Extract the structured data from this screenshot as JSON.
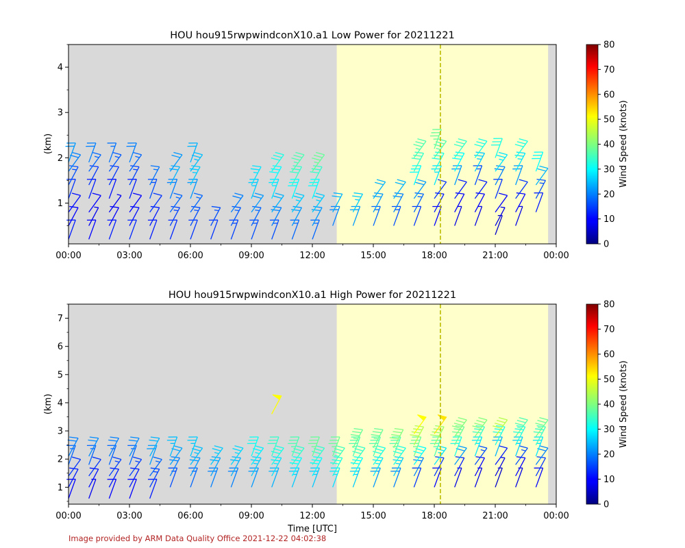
{
  "credit": "Image provided by ARM Data Quality Office 2021-12-22 04:02:38",
  "colors": {
    "night_shading": "#d9d9d9",
    "day_shading": "#ffffcc",
    "marker_line": "#bbbb00",
    "credit_text": "#b22222"
  },
  "chart_data": [
    {
      "type": "scatter",
      "marker": "wind-barb",
      "title": "HOU hou915rwpwindconX10.a1 Low Power for 20211221",
      "ylabel": "(km)",
      "xlabel": "",
      "x_ticks": [
        "00:00",
        "03:00",
        "06:00",
        "09:00",
        "12:00",
        "15:00",
        "18:00",
        "21:00",
        "00:00"
      ],
      "xlim_hours": [
        0,
        24
      ],
      "ylim": [
        0.1,
        4.5
      ],
      "y_ticks": [
        1,
        2,
        3,
        4
      ],
      "daylight_hours": [
        13.2,
        23.6
      ],
      "marker_line_hour": 18.3,
      "colorbar": {
        "label": "Wind Speed (knots)",
        "range": [
          0,
          80
        ],
        "ticks": [
          0,
          10,
          20,
          30,
          40,
          50,
          60,
          70,
          80
        ],
        "colormap": "jet"
      },
      "profiles": [
        {
          "time_h": 0.0,
          "heights_km": [
            0.2,
            0.5,
            0.8,
            1.1,
            1.4,
            1.7,
            1.9
          ],
          "speed_kt": [
            12,
            10,
            11,
            14,
            16,
            20,
            22
          ]
        },
        {
          "time_h": 1.0,
          "heights_km": [
            0.2,
            0.5,
            0.8,
            1.1,
            1.4,
            1.7,
            1.9
          ],
          "speed_kt": [
            10,
            9,
            10,
            12,
            14,
            18,
            20
          ]
        },
        {
          "time_h": 2.0,
          "heights_km": [
            0.2,
            0.5,
            0.8,
            1.1,
            1.4,
            1.7,
            1.9
          ],
          "speed_kt": [
            12,
            10,
            9,
            11,
            14,
            17,
            19
          ]
        },
        {
          "time_h": 3.0,
          "heights_km": [
            0.2,
            0.5,
            0.8,
            1.1,
            1.4,
            1.7,
            1.9
          ],
          "speed_kt": [
            13,
            11,
            10,
            12,
            15,
            18,
            20
          ]
        },
        {
          "time_h": 4.0,
          "heights_km": [
            0.2,
            0.5,
            0.8,
            1.1,
            1.4
          ],
          "speed_kt": [
            12,
            12,
            14,
            16,
            19
          ]
        },
        {
          "time_h": 5.0,
          "heights_km": [
            0.2,
            0.5,
            0.8,
            1.1,
            1.4,
            1.7
          ],
          "speed_kt": [
            13,
            15,
            18,
            20,
            24,
            22
          ]
        },
        {
          "time_h": 6.0,
          "heights_km": [
            0.2,
            0.5,
            0.8,
            1.1,
            1.4,
            1.7,
            1.9
          ],
          "speed_kt": [
            14,
            16,
            18,
            22,
            26,
            25,
            24
          ]
        },
        {
          "time_h": 7.0,
          "heights_km": [
            0.2,
            0.5
          ],
          "speed_kt": [
            14,
            16
          ]
        },
        {
          "time_h": 8.0,
          "heights_km": [
            0.2,
            0.5,
            0.8
          ],
          "speed_kt": [
            15,
            17,
            20
          ]
        },
        {
          "time_h": 9.0,
          "heights_km": [
            0.2,
            0.5,
            0.8,
            1.1,
            1.4
          ],
          "speed_kt": [
            16,
            18,
            22,
            26,
            28
          ]
        },
        {
          "time_h": 10.0,
          "heights_km": [
            0.2,
            0.5,
            0.8,
            1.1,
            1.4,
            1.7
          ],
          "speed_kt": [
            16,
            20,
            24,
            28,
            30,
            32
          ]
        },
        {
          "time_h": 11.0,
          "heights_km": [
            0.2,
            0.5,
            0.8,
            1.1,
            1.4,
            1.7
          ],
          "speed_kt": [
            18,
            22,
            26,
            30,
            34,
            36
          ]
        },
        {
          "time_h": 12.0,
          "heights_km": [
            0.2,
            0.5,
            0.8,
            1.1,
            1.4,
            1.7
          ],
          "speed_kt": [
            18,
            22,
            26,
            30,
            34,
            38
          ]
        },
        {
          "time_h": 13.0,
          "heights_km": [
            0.5,
            0.8
          ],
          "speed_kt": [
            20,
            24
          ]
        },
        {
          "time_h": 14.0,
          "heights_km": [
            0.5,
            0.8
          ],
          "speed_kt": [
            22,
            26
          ]
        },
        {
          "time_h": 15.0,
          "heights_km": [
            0.5,
            0.8,
            1.1
          ],
          "speed_kt": [
            18,
            22,
            24
          ]
        },
        {
          "time_h": 16.0,
          "heights_km": [
            0.5,
            0.8,
            1.1
          ],
          "speed_kt": [
            16,
            20,
            24
          ]
        },
        {
          "time_h": 17.0,
          "heights_km": [
            0.5,
            0.8,
            1.1,
            1.4,
            1.7,
            2.0
          ],
          "speed_kt": [
            14,
            18,
            22,
            30,
            34,
            36
          ]
        },
        {
          "time_h": 18.0,
          "heights_km": [
            0.5,
            0.8,
            1.1,
            1.4,
            1.7,
            2.0,
            2.2
          ],
          "speed_kt": [
            10,
            12,
            14,
            28,
            32,
            36,
            38
          ]
        },
        {
          "time_h": 19.0,
          "heights_km": [
            0.5,
            0.8,
            1.1,
            1.4,
            1.7,
            2.0
          ],
          "speed_kt": [
            8,
            10,
            12,
            22,
            30,
            34
          ]
        },
        {
          "time_h": 20.0,
          "heights_km": [
            0.5,
            0.8,
            1.1,
            1.4,
            1.7,
            2.0
          ],
          "speed_kt": [
            8,
            10,
            12,
            16,
            26,
            32
          ]
        },
        {
          "time_h": 21.0,
          "heights_km": [
            0.3,
            0.5,
            0.8,
            1.1,
            1.4,
            1.7,
            2.0
          ],
          "speed_kt": [
            6,
            8,
            10,
            14,
            20,
            28,
            32
          ]
        },
        {
          "time_h": 22.0,
          "heights_km": [
            0.5,
            0.8,
            1.1,
            1.4,
            1.7,
            2.0
          ],
          "speed_kt": [
            8,
            10,
            14,
            22,
            28,
            32
          ]
        },
        {
          "time_h": 23.0,
          "heights_km": [
            0.8,
            1.1,
            1.4,
            1.7
          ],
          "speed_kt": [
            12,
            16,
            24,
            30
          ]
        }
      ]
    },
    {
      "type": "scatter",
      "marker": "wind-barb",
      "title": "HOU hou915rwpwindconX10.a1 High Power for 20211221",
      "ylabel": "(km)",
      "xlabel": "Time [UTC]",
      "x_ticks": [
        "00:00",
        "03:00",
        "06:00",
        "09:00",
        "12:00",
        "15:00",
        "18:00",
        "21:00",
        "00:00"
      ],
      "xlim_hours": [
        0,
        24
      ],
      "ylim": [
        0.4,
        7.5
      ],
      "y_ticks": [
        1,
        2,
        3,
        4,
        5,
        6,
        7
      ],
      "daylight_hours": [
        13.2,
        23.6
      ],
      "marker_line_hour": 18.3,
      "colorbar": {
        "label": "Wind Speed (knots)",
        "range": [
          0,
          80
        ],
        "ticks": [
          0,
          10,
          20,
          30,
          40,
          50,
          60,
          70,
          80
        ],
        "colormap": "jet"
      },
      "profiles": [
        {
          "time_h": 0.0,
          "heights_km": [
            0.6,
            1.0,
            1.4,
            1.8,
            2.1
          ],
          "speed_kt": [
            10,
            12,
            14,
            18,
            20
          ]
        },
        {
          "time_h": 1.0,
          "heights_km": [
            0.6,
            1.0,
            1.4,
            1.8,
            2.1
          ],
          "speed_kt": [
            9,
            11,
            14,
            18,
            21
          ]
        },
        {
          "time_h": 2.0,
          "heights_km": [
            0.6,
            1.0,
            1.4,
            1.8,
            2.1
          ],
          "speed_kt": [
            10,
            12,
            15,
            18,
            20
          ]
        },
        {
          "time_h": 3.0,
          "heights_km": [
            0.6,
            1.0,
            1.4,
            1.8,
            2.1
          ],
          "speed_kt": [
            10,
            12,
            15,
            18,
            21
          ]
        },
        {
          "time_h": 4.0,
          "heights_km": [
            0.6,
            1.0,
            1.4,
            1.8,
            2.1
          ],
          "speed_kt": [
            12,
            15,
            18,
            22,
            24
          ]
        },
        {
          "time_h": 5.0,
          "heights_km": [
            1.0,
            1.4,
            1.8,
            2.1
          ],
          "speed_kt": [
            16,
            20,
            23,
            25
          ]
        },
        {
          "time_h": 6.0,
          "heights_km": [
            1.0,
            1.4,
            1.8,
            2.1
          ],
          "speed_kt": [
            18,
            22,
            25,
            26
          ]
        },
        {
          "time_h": 7.0,
          "heights_km": [
            1.0,
            1.4,
            1.8
          ],
          "speed_kt": [
            20,
            23,
            26
          ]
        },
        {
          "time_h": 8.0,
          "heights_km": [
            1.0,
            1.4,
            1.8
          ],
          "speed_kt": [
            20,
            24,
            27
          ]
        },
        {
          "time_h": 9.0,
          "heights_km": [
            1.0,
            1.4,
            1.8,
            2.1
          ],
          "speed_kt": [
            22,
            26,
            29,
            31
          ]
        },
        {
          "time_h": 10.0,
          "heights_km": [
            1.0,
            1.4,
            1.8,
            2.1,
            3.6
          ],
          "speed_kt": [
            24,
            28,
            32,
            34,
            50
          ]
        },
        {
          "time_h": 11.0,
          "heights_km": [
            1.0,
            1.4,
            1.8,
            2.1
          ],
          "speed_kt": [
            26,
            30,
            34,
            36
          ]
        },
        {
          "time_h": 12.0,
          "heights_km": [
            1.0,
            1.4,
            1.8,
            2.1
          ],
          "speed_kt": [
            26,
            30,
            34,
            38
          ]
        },
        {
          "time_h": 13.0,
          "heights_km": [
            1.0,
            1.4,
            1.8,
            2.1
          ],
          "speed_kt": [
            28,
            32,
            35,
            38
          ]
        },
        {
          "time_h": 14.0,
          "heights_km": [
            1.0,
            1.4,
            1.8,
            2.1,
            2.4
          ],
          "speed_kt": [
            26,
            30,
            34,
            36,
            38
          ]
        },
        {
          "time_h": 15.0,
          "heights_km": [
            1.0,
            1.4,
            1.8,
            2.1,
            2.4
          ],
          "speed_kt": [
            22,
            28,
            32,
            36,
            38
          ]
        },
        {
          "time_h": 16.0,
          "heights_km": [
            1.0,
            1.4,
            1.8,
            2.1,
            2.4
          ],
          "speed_kt": [
            20,
            26,
            32,
            36,
            40
          ]
        },
        {
          "time_h": 17.0,
          "heights_km": [
            1.0,
            1.4,
            1.8,
            2.1,
            2.5,
            2.9
          ],
          "speed_kt": [
            14,
            20,
            30,
            38,
            44,
            50
          ]
        },
        {
          "time_h": 18.0,
          "heights_km": [
            1.0,
            1.4,
            1.8,
            2.1,
            2.5,
            2.9
          ],
          "speed_kt": [
            10,
            14,
            28,
            36,
            42,
            52
          ]
        },
        {
          "time_h": 19.0,
          "heights_km": [
            1.0,
            1.4,
            1.8,
            2.1,
            2.5,
            2.8
          ],
          "speed_kt": [
            8,
            12,
            22,
            32,
            38,
            40
          ]
        },
        {
          "time_h": 20.0,
          "heights_km": [
            1.0,
            1.4,
            1.8,
            2.1,
            2.5,
            2.8
          ],
          "speed_kt": [
            8,
            10,
            16,
            28,
            34,
            40
          ]
        },
        {
          "time_h": 21.0,
          "heights_km": [
            1.0,
            1.4,
            1.8,
            2.1,
            2.5,
            2.8
          ],
          "speed_kt": [
            6,
            8,
            12,
            24,
            32,
            44
          ]
        },
        {
          "time_h": 22.0,
          "heights_km": [
            1.0,
            1.4,
            1.8,
            2.1,
            2.5,
            2.8
          ],
          "speed_kt": [
            8,
            10,
            16,
            26,
            32,
            36
          ]
        },
        {
          "time_h": 23.0,
          "heights_km": [
            1.0,
            1.4,
            1.8,
            2.1,
            2.5,
            2.8
          ],
          "speed_kt": [
            10,
            14,
            20,
            28,
            34,
            38
          ]
        }
      ]
    }
  ]
}
